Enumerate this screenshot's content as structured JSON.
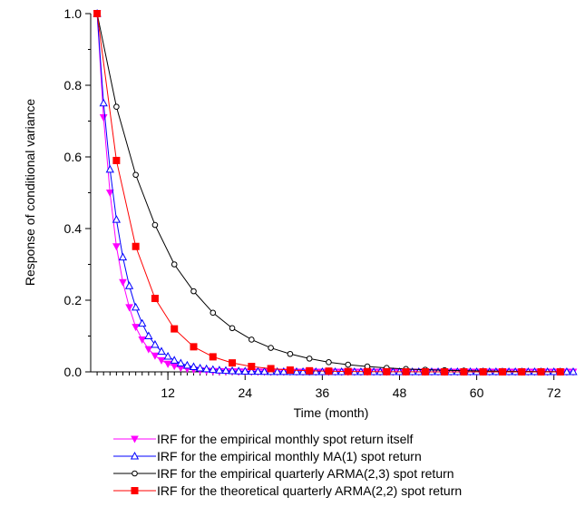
{
  "chart_data": {
    "type": "line",
    "title": "",
    "xlabel": "Time (month)",
    "ylabel": "Response of conditional variance",
    "xlim": [
      0,
      75
    ],
    "ylim": [
      0,
      1.0
    ],
    "x_ticks": [
      12,
      24,
      36,
      48,
      60,
      72
    ],
    "x_tick_labels": [
      "12",
      "24",
      "36",
      "48",
      "60",
      "72"
    ],
    "y_ticks": [
      0.0,
      0.2,
      0.4,
      0.6,
      0.8,
      1.0
    ],
    "y_tick_labels": [
      "0.0",
      "0.2",
      "0.4",
      "0.6",
      "0.8",
      "1.0"
    ],
    "grid": false,
    "legend_position": "bottom",
    "series": [
      {
        "name": "IRF for the empirical monthly spot return itself",
        "color": "#ff00ff",
        "marker": "triangle-down-filled",
        "x": [
          1,
          2,
          3,
          4,
          5,
          6,
          7,
          8,
          9,
          10,
          11,
          12,
          13,
          14,
          15,
          16,
          17,
          18,
          19,
          20,
          21,
          22,
          23,
          24,
          25,
          26,
          27,
          28,
          29,
          30,
          31,
          32,
          33,
          34,
          35,
          36,
          37,
          38,
          39,
          40,
          41,
          42,
          43,
          44,
          45,
          46,
          47,
          48,
          49,
          50,
          51,
          52,
          53,
          54,
          55,
          56,
          57,
          58,
          59,
          60,
          61,
          62,
          63,
          64,
          65,
          66,
          67,
          68,
          69,
          70,
          71,
          72,
          73,
          74,
          75
        ],
        "y": [
          1.0,
          0.71,
          0.5,
          0.35,
          0.25,
          0.18,
          0.125,
          0.09,
          0.063,
          0.045,
          0.032,
          0.022,
          0.016,
          0.011,
          0.008,
          0.006,
          0.004,
          0.003,
          0.002,
          0.0015,
          0.001,
          0.001,
          0.0005,
          0.0004,
          0.0003,
          0.0002,
          0.0001,
          0.0001,
          0,
          0,
          0,
          0,
          0,
          0,
          0,
          0,
          0,
          0,
          0,
          0,
          0,
          0,
          0,
          0,
          0,
          0,
          0,
          0,
          0,
          0,
          0,
          0,
          0,
          0,
          0,
          0,
          0,
          0,
          0,
          0,
          0,
          0,
          0,
          0,
          0,
          0,
          0,
          0,
          0,
          0,
          0,
          0,
          0,
          0,
          0
        ]
      },
      {
        "name": "IRF for the empirical monthly MA(1) spot return",
        "color": "#0000ff",
        "marker": "triangle-up-open",
        "x": [
          1,
          2,
          3,
          4,
          5,
          6,
          7,
          8,
          9,
          10,
          11,
          12,
          13,
          14,
          15,
          16,
          17,
          18,
          19,
          20,
          21,
          22,
          23,
          24,
          25,
          26,
          27,
          28,
          29,
          30,
          31,
          32,
          33,
          34,
          35,
          36,
          37,
          38,
          39,
          40,
          41,
          42,
          43,
          44,
          45,
          46,
          47,
          48,
          49,
          50,
          51,
          52,
          53,
          54,
          55,
          56,
          57,
          58,
          59,
          60,
          61,
          62,
          63,
          64,
          65,
          66,
          67,
          68,
          69,
          70,
          71,
          72,
          73,
          74,
          75
        ],
        "y": [
          1.0,
          0.75,
          0.565,
          0.425,
          0.32,
          0.24,
          0.18,
          0.135,
          0.1,
          0.076,
          0.057,
          0.043,
          0.032,
          0.024,
          0.018,
          0.014,
          0.01,
          0.008,
          0.006,
          0.0045,
          0.0034,
          0.0025,
          0.0019,
          0.0014,
          0.001,
          0.0008,
          0.0006,
          0.0004,
          0.0003,
          0.0002,
          0.0002,
          0.0001,
          0.0001,
          0,
          0,
          0,
          0,
          0,
          0,
          0,
          0,
          0,
          0,
          0,
          0,
          0,
          0,
          0,
          0,
          0,
          0,
          0,
          0,
          0,
          0,
          0,
          0,
          0,
          0,
          0,
          0,
          0,
          0,
          0,
          0,
          0,
          0,
          0,
          0,
          0,
          0,
          0,
          0,
          0,
          0
        ]
      },
      {
        "name": "IRF for the empirical quarterly ARMA(2,3) spot return",
        "color": "#000000",
        "marker": "circle-open",
        "x": [
          1,
          4,
          7,
          10,
          13,
          16,
          19,
          22,
          25,
          28,
          31,
          34,
          37,
          40,
          43,
          46,
          49,
          52,
          55,
          58,
          61,
          64,
          67,
          70,
          73
        ],
        "y": [
          1.0,
          0.74,
          0.55,
          0.41,
          0.3,
          0.225,
          0.165,
          0.122,
          0.09,
          0.067,
          0.05,
          0.037,
          0.027,
          0.02,
          0.015,
          0.011,
          0.008,
          0.006,
          0.0045,
          0.0033,
          0.0025,
          0.0018,
          0.0013,
          0.001,
          0.0007
        ]
      },
      {
        "name": "IRF for the theoretical quarterly ARMA(2,2) spot return",
        "color": "#ff0000",
        "marker": "square-filled",
        "x": [
          1,
          4,
          7,
          10,
          13,
          16,
          19,
          22,
          25,
          28,
          31,
          34,
          37,
          40,
          43,
          46,
          49,
          52,
          55,
          58,
          61,
          64,
          67,
          70,
          73
        ],
        "y": [
          1.0,
          0.59,
          0.35,
          0.205,
          0.12,
          0.07,
          0.042,
          0.025,
          0.015,
          0.009,
          0.005,
          0.003,
          0.002,
          0.001,
          0.0007,
          0.0004,
          0.0002,
          0.0001,
          0,
          0,
          0,
          0,
          0,
          0,
          0
        ]
      }
    ]
  }
}
